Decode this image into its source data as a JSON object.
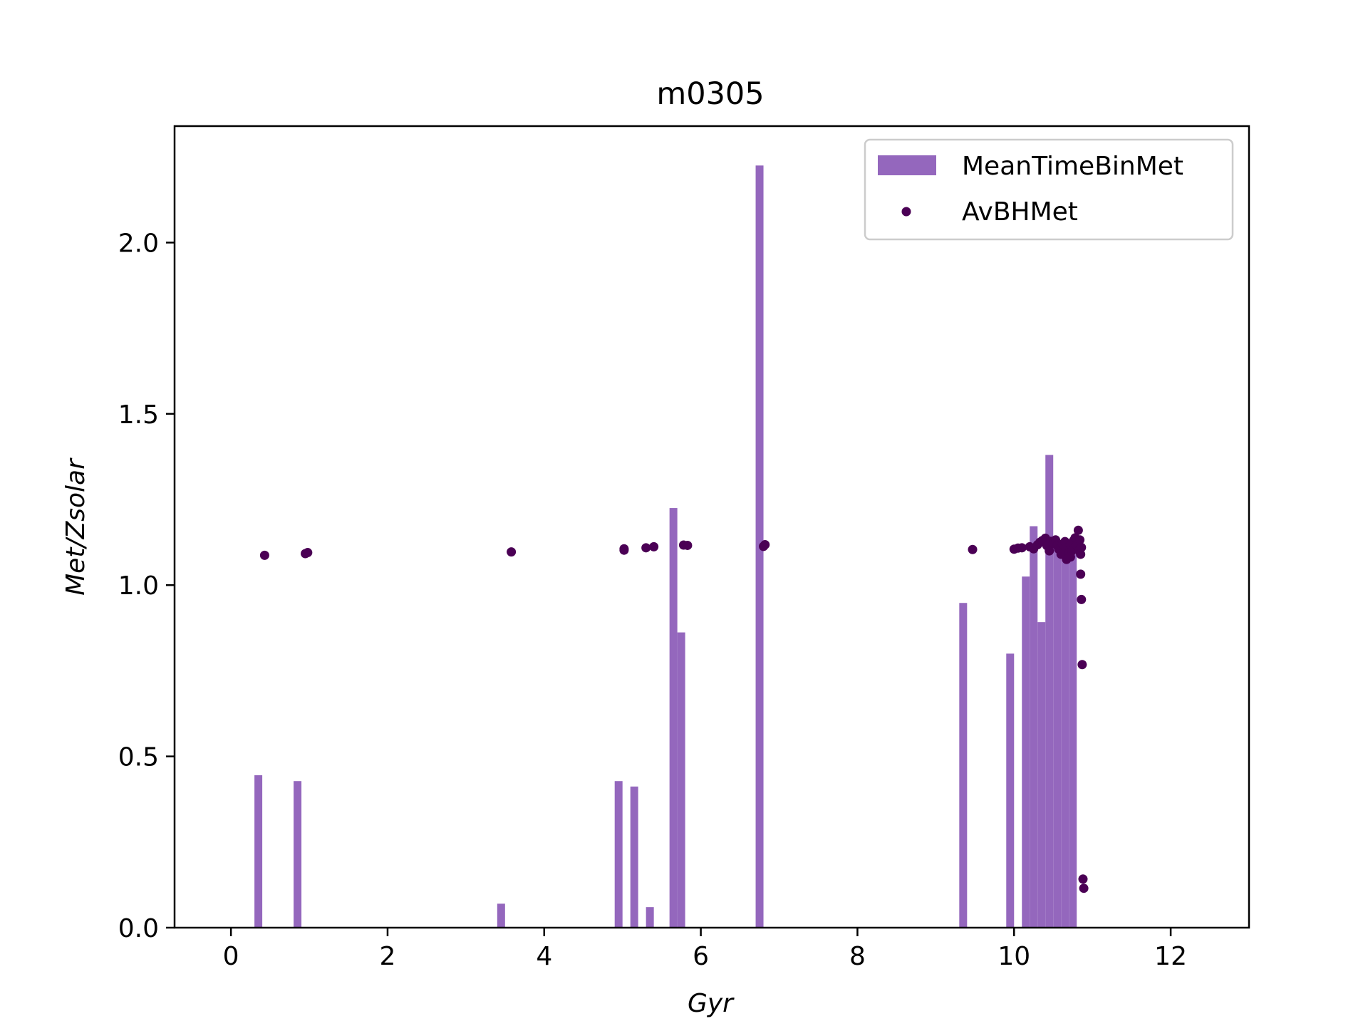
{
  "chart_data": {
    "type": "bar",
    "title": "m0305",
    "xlabel": "Gyr",
    "ylabel": "Met/Zsolar",
    "xlim": [
      -0.72,
      13.0
    ],
    "ylim": [
      0.0,
      2.34
    ],
    "xticks": [
      0,
      2,
      4,
      6,
      8,
      10,
      12
    ],
    "xtick_labels": [
      "0",
      "2",
      "4",
      "6",
      "8",
      "10",
      "12"
    ],
    "yticks": [
      0.0,
      0.5,
      1.0,
      1.5,
      2.0
    ],
    "ytick_labels": [
      "0.0",
      "0.5",
      "1.0",
      "1.5",
      "2.0"
    ],
    "grid": false,
    "legend_position": "top-right",
    "colors": {
      "bars": "#9467bd",
      "points": "#4b0055",
      "axes": "#000000"
    },
    "bar_width": 0.1,
    "series": [
      {
        "name": "MeanTimeBinMet",
        "kind": "bar",
        "x": [
          0.35,
          0.85,
          3.45,
          4.95,
          5.15,
          5.35,
          5.65,
          5.75,
          6.75,
          9.35,
          9.95,
          10.15,
          10.25,
          10.35,
          10.45,
          10.55,
          10.65,
          10.75
        ],
        "values": [
          0.445,
          0.428,
          0.07,
          0.428,
          0.412,
          0.06,
          1.225,
          0.862,
          2.225,
          0.948,
          0.8,
          1.025,
          1.172,
          0.892,
          1.38,
          1.12,
          1.1,
          1.09
        ]
      },
      {
        "name": "AvBHMet",
        "kind": "scatter",
        "points": [
          [
            0.43,
            1.087
          ],
          [
            0.95,
            1.092
          ],
          [
            0.98,
            1.095
          ],
          [
            3.58,
            1.097
          ],
          [
            5.02,
            1.102
          ],
          [
            5.02,
            1.106
          ],
          [
            5.3,
            1.109
          ],
          [
            5.4,
            1.112
          ],
          [
            5.78,
            1.117
          ],
          [
            5.83,
            1.116
          ],
          [
            6.8,
            1.113
          ],
          [
            6.82,
            1.118
          ],
          [
            9.47,
            1.104
          ],
          [
            10.0,
            1.105
          ],
          [
            10.05,
            1.108
          ],
          [
            10.1,
            1.109
          ],
          [
            10.2,
            1.112
          ],
          [
            10.25,
            1.106
          ],
          [
            10.3,
            1.118
          ],
          [
            10.33,
            1.125
          ],
          [
            10.36,
            1.13
          ],
          [
            10.4,
            1.137
          ],
          [
            10.42,
            1.115
          ],
          [
            10.45,
            1.1
          ],
          [
            10.47,
            1.128
          ],
          [
            10.5,
            1.122
          ],
          [
            10.53,
            1.132
          ],
          [
            10.55,
            1.115
          ],
          [
            10.57,
            1.105
          ],
          [
            10.6,
            1.09
          ],
          [
            10.62,
            1.12
          ],
          [
            10.65,
            1.127
          ],
          [
            10.67,
            1.108
          ],
          [
            10.7,
            1.095
          ],
          [
            10.72,
            1.118
          ],
          [
            10.74,
            1.1
          ],
          [
            10.76,
            1.13
          ],
          [
            10.78,
            1.138
          ],
          [
            10.8,
            1.116
          ],
          [
            10.82,
            1.16
          ],
          [
            10.83,
            1.1
          ],
          [
            10.84,
            1.132
          ],
          [
            10.85,
            1.09
          ],
          [
            10.86,
            1.11
          ],
          [
            10.72,
            1.082
          ],
          [
            10.67,
            1.075
          ],
          [
            10.85,
            1.032
          ],
          [
            10.86,
            0.958
          ],
          [
            10.87,
            0.768
          ],
          [
            10.88,
            0.142
          ],
          [
            10.89,
            0.115
          ]
        ]
      }
    ]
  }
}
